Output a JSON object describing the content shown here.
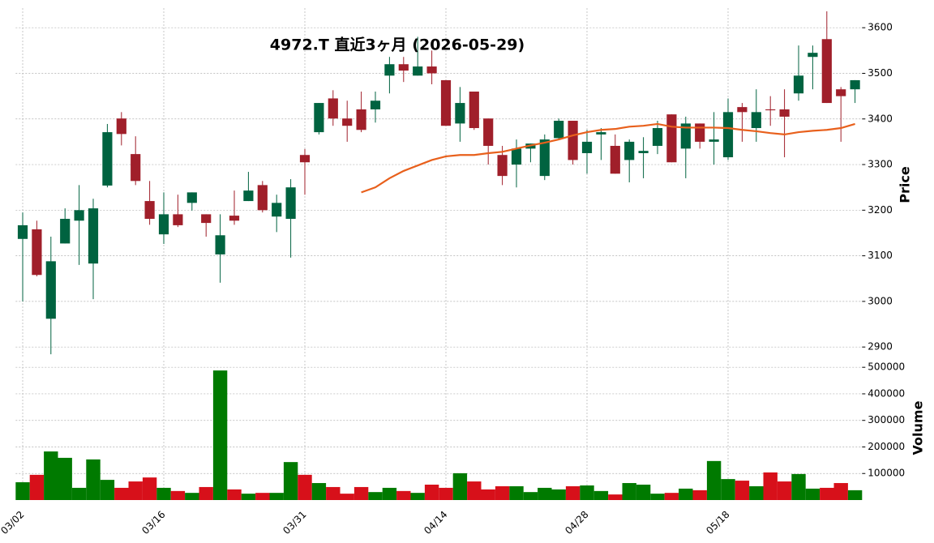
{
  "chart_data": [
    {
      "type": "candlestick",
      "title": "4972.T  直近3ヶ月 (2026-05-29)",
      "ylabel": "Price",
      "categories": [
        "03/02",
        null,
        null,
        null,
        null,
        null,
        null,
        null,
        null,
        null,
        "03/16",
        null,
        null,
        null,
        null,
        null,
        null,
        null,
        null,
        null,
        "03/31",
        null,
        null,
        null,
        null,
        null,
        null,
        null,
        null,
        null,
        "04/14",
        null,
        null,
        null,
        null,
        null,
        null,
        null,
        null,
        null,
        "04/28",
        null,
        null,
        null,
        null,
        null,
        null,
        null,
        null,
        null,
        "05/18",
        null,
        null,
        null,
        null,
        null,
        null,
        null,
        null,
        null
      ],
      "open": [
        3137,
        3158,
        2962,
        3127,
        3177,
        3083,
        3254,
        3401,
        3323,
        3220,
        3147,
        3191,
        3216,
        3191,
        3103,
        3188,
        3220,
        3255,
        3186,
        3181,
        3321,
        3371,
        3445,
        3401,
        3421,
        3421,
        3495,
        3520,
        3495,
        3515,
        3485,
        3390,
        3460,
        3401,
        3321,
        3300,
        3335,
        3275,
        3358,
        3396,
        3325,
        3366,
        3341,
        3310,
        3325,
        3341,
        3410,
        3335,
        3390,
        3350,
        3316,
        3426,
        3380,
        3421,
        3421,
        3456,
        3536,
        3575,
        3465,
        3465
      ],
      "high": [
        3195,
        3177,
        3142,
        3204,
        3255,
        3225,
        3389,
        3415,
        3362,
        3264,
        3239,
        3234,
        3239,
        3191,
        3191,
        3243,
        3284,
        3264,
        3234,
        3268,
        3334,
        3435,
        3463,
        3440,
        3460,
        3460,
        3536,
        3536,
        3580,
        3550,
        3485,
        3470,
        3460,
        3401,
        3341,
        3355,
        3346,
        3366,
        3401,
        3396,
        3376,
        3380,
        3366,
        3355,
        3360,
        3396,
        3410,
        3405,
        3390,
        3415,
        3445,
        3435,
        3465,
        3450,
        3465,
        3561,
        3561,
        3636,
        3470,
        3485
      ],
      "low": [
        3000,
        3055,
        2884,
        3127,
        3080,
        3005,
        3250,
        3342,
        3255,
        3168,
        3126,
        3163,
        3199,
        3142,
        3041,
        3168,
        3220,
        3195,
        3152,
        3096,
        3234,
        3366,
        3385,
        3350,
        3371,
        3392,
        3456,
        3481,
        3495,
        3476,
        3385,
        3350,
        3376,
        3300,
        3255,
        3250,
        3305,
        3266,
        3355,
        3300,
        3280,
        3310,
        3280,
        3261,
        3270,
        3323,
        3305,
        3270,
        3335,
        3300,
        3310,
        3350,
        3350,
        3385,
        3316,
        3440,
        3465,
        3435,
        3350,
        3435
      ],
      "close": [
        3167,
        3058,
        3088,
        3181,
        3200,
        3204,
        3371,
        3367,
        3264,
        3181,
        3191,
        3167,
        3239,
        3172,
        3145,
        3177,
        3243,
        3200,
        3216,
        3250,
        3305,
        3435,
        3401,
        3385,
        3376,
        3440,
        3520,
        3506,
        3515,
        3500,
        3385,
        3435,
        3380,
        3341,
        3275,
        3335,
        3346,
        3355,
        3396,
        3310,
        3350,
        3371,
        3280,
        3350,
        3330,
        3380,
        3305,
        3390,
        3350,
        3355,
        3415,
        3415,
        3415,
        3419,
        3405,
        3495,
        3545,
        3435,
        3450,
        3485
      ],
      "up_color": "#006340",
      "down_color": "#a01f2a",
      "series": [
        {
          "color": "#e8601c",
          "values": [
            null,
            null,
            null,
            null,
            null,
            null,
            null,
            null,
            null,
            null,
            null,
            null,
            null,
            null,
            null,
            null,
            null,
            null,
            null,
            null,
            null,
            null,
            null,
            null,
            3239,
            3250,
            3270,
            3286,
            3298,
            3310,
            3318,
            3321,
            3321,
            3325,
            3328,
            3335,
            3342,
            3348,
            3355,
            3364,
            3371,
            3376,
            3378,
            3383,
            3385,
            3389,
            3383,
            3381,
            3381,
            3381,
            3380,
            3376,
            3373,
            3369,
            3366,
            3371,
            3374,
            3376,
            3380,
            3389
          ]
        }
      ],
      "ylim": [
        2879,
        3643
      ],
      "yticks": [
        2900,
        3000,
        3100,
        3200,
        3300,
        3400,
        3500,
        3600
      ],
      "grid": true
    },
    {
      "type": "bar",
      "ylabel": "Volume",
      "up_color": "#007a00",
      "down_color": "#d7101a",
      "values": [
        67000,
        95000,
        183000,
        159000,
        46000,
        153000,
        76000,
        46000,
        70000,
        85000,
        46000,
        34000,
        27000,
        49000,
        488000,
        40000,
        24000,
        27000,
        27000,
        143000,
        95000,
        64000,
        49000,
        24000,
        49000,
        30000,
        46000,
        34000,
        27000,
        58000,
        46000,
        101000,
        70000,
        40000,
        52000,
        52000,
        30000,
        46000,
        40000,
        52000,
        55000,
        34000,
        21000,
        64000,
        58000,
        24000,
        27000,
        43000,
        37000,
        147000,
        79000,
        73000,
        52000,
        104000,
        70000,
        98000,
        43000,
        46000,
        64000,
        37000
      ],
      "ylim": [
        0,
        525000
      ],
      "yticks": [
        100000,
        200000,
        300000,
        400000,
        500000
      ],
      "grid": true
    }
  ]
}
